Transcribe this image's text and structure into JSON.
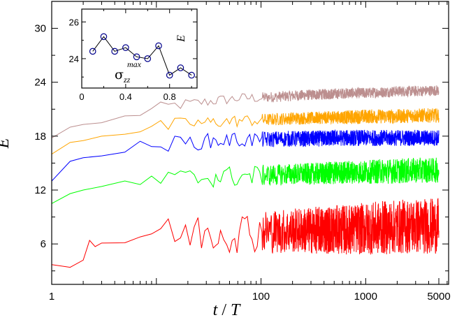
{
  "chart_data": [
    {
      "type": "line",
      "x_scale": "log",
      "xlabel_var": "t",
      "xlabel_sep": " / ",
      "xlabel_unit": "T",
      "ylabel": "E",
      "xlim": [
        1,
        6200
      ],
      "ylim": [
        1.5,
        33
      ],
      "x_ticks": [
        1,
        100,
        1000,
        5000
      ],
      "x_tick_labels": [
        "1",
        "100",
        "1000",
        "5000"
      ],
      "y_ticks": [
        6,
        12,
        18,
        24,
        30
      ],
      "y_tick_labels": [
        "6",
        "12",
        "18",
        "24",
        "30"
      ],
      "series": [
        {
          "name": "brown",
          "color": "#bc8f8f",
          "x": [
            1,
            1.5,
            2,
            3,
            4,
            5,
            6,
            8,
            10,
            13,
            16,
            20,
            30,
            40,
            60,
            100,
            150,
            200,
            300,
            500,
            700,
            1000,
            1500,
            2000,
            3000,
            5000
          ],
          "y": [
            17.8,
            19.0,
            19.3,
            19.5,
            19.8,
            20.1,
            20.2,
            20.8,
            21.0,
            21.3,
            21.5,
            21.6,
            21.8,
            22.0,
            22.2,
            22.3,
            22.4,
            22.5,
            22.6,
            22.7,
            22.8,
            22.8,
            22.9,
            23.0,
            23.0,
            23.1
          ],
          "noise": [
            0,
            0,
            0.2,
            0.4,
            0.5,
            0.5,
            0.5,
            0.6,
            0.7,
            0.7,
            0.7,
            0.6,
            0.6,
            0.6,
            0.6,
            0.6,
            0.6,
            0.6,
            0.6,
            0.6,
            0.6,
            0.6,
            0.6,
            0.6,
            0.6,
            0.6
          ]
        },
        {
          "name": "orange",
          "color": "#ffa500",
          "x": [
            1,
            1.5,
            2,
            3,
            4,
            5,
            6,
            8,
            10,
            13,
            16,
            20,
            30,
            40,
            60,
            100,
            150,
            200,
            300,
            500,
            700,
            1000,
            1500,
            2000,
            3000,
            5000
          ],
          "y": [
            16.0,
            17.3,
            17.5,
            18.0,
            18.2,
            18.6,
            18.6,
            18.8,
            19.0,
            19.1,
            19.3,
            19.4,
            19.5,
            19.6,
            19.7,
            19.8,
            19.9,
            20.0,
            20.0,
            20.1,
            20.1,
            20.2,
            20.2,
            20.2,
            20.3,
            20.3
          ],
          "noise": [
            0,
            0,
            0.3,
            0.5,
            0.7,
            0.7,
            0.8,
            0.8,
            0.8,
            0.8,
            0.8,
            0.7,
            0.7,
            0.7,
            0.7,
            0.7,
            0.7,
            0.7,
            0.7,
            0.7,
            0.8,
            0.8,
            0.8,
            0.8,
            0.8,
            0.8
          ]
        },
        {
          "name": "blue",
          "color": "#0000ff",
          "x": [
            1,
            1.5,
            2,
            3,
            4,
            5,
            6,
            8,
            10,
            13,
            16,
            20,
            30,
            40,
            60,
            100,
            150,
            200,
            300,
            500,
            700,
            1000,
            1500,
            2000,
            3000,
            5000
          ],
          "y": [
            13.0,
            15.2,
            15.6,
            15.8,
            16.1,
            16.3,
            16.5,
            16.8,
            17.0,
            17.1,
            17.2,
            17.3,
            17.4,
            17.5,
            17.6,
            17.6,
            17.7,
            17.7,
            17.7,
            17.8,
            17.8,
            17.8,
            17.8,
            17.8,
            17.8,
            17.8
          ],
          "noise": [
            0,
            0,
            0.3,
            0.6,
            0.7,
            0.8,
            0.8,
            0.9,
            0.9,
            0.9,
            0.9,
            0.9,
            0.9,
            0.9,
            0.9,
            0.9,
            0.9,
            0.9,
            0.9,
            0.9,
            0.9,
            0.9,
            0.9,
            0.9,
            0.9,
            0.9
          ]
        },
        {
          "name": "green",
          "color": "#00ff00",
          "x": [
            1,
            1.5,
            2,
            3,
            4,
            5,
            6,
            8,
            10,
            13,
            16,
            20,
            30,
            40,
            60,
            100,
            150,
            200,
            300,
            500,
            700,
            1000,
            1500,
            2000,
            3000,
            5000
          ],
          "y": [
            10.5,
            11.6,
            12.0,
            12.4,
            12.6,
            12.7,
            12.8,
            12.9,
            13.0,
            13.1,
            13.2,
            13.3,
            13.4,
            13.5,
            13.5,
            13.6,
            13.7,
            13.8,
            13.8,
            13.9,
            14.0,
            14.0,
            14.1,
            14.1,
            14.2,
            14.2
          ],
          "noise": [
            0,
            0,
            0.4,
            0.8,
            1.0,
            1.0,
            1.1,
            1.2,
            1.2,
            1.2,
            1.2,
            1.2,
            1.2,
            1.2,
            1.2,
            1.2,
            1.2,
            1.2,
            1.2,
            1.3,
            1.3,
            1.3,
            1.4,
            1.4,
            1.4,
            1.4
          ]
        },
        {
          "name": "red",
          "color": "#ff0000",
          "x": [
            1,
            1.5,
            2,
            2.3,
            2.6,
            3,
            3.5,
            4,
            5,
            6,
            8,
            10,
            13,
            16,
            20,
            30,
            40,
            60,
            100,
            150,
            200,
            300,
            500,
            700,
            1000,
            1500,
            2000,
            3000,
            5000
          ],
          "y": [
            3.7,
            3.4,
            4.2,
            6.4,
            5.7,
            6.1,
            7.0,
            6.4,
            6.6,
            6.8,
            7.1,
            7.2,
            7.0,
            7.1,
            7.2,
            7.3,
            7.3,
            7.4,
            7.4,
            7.4,
            7.5,
            7.5,
            7.6,
            7.6,
            7.7,
            7.8,
            7.9,
            8.0,
            8.0
          ],
          "noise": [
            0,
            0,
            0,
            0,
            0,
            0.4,
            0.8,
            1.2,
            1.5,
            1.6,
            1.8,
            1.9,
            2.0,
            2.1,
            2.2,
            2.3,
            2.3,
            2.4,
            2.4,
            2.5,
            2.5,
            2.6,
            2.7,
            2.8,
            2.9,
            3.0,
            3.0,
            3.1,
            3.1
          ]
        }
      ]
    },
    {
      "type": "line",
      "role": "inset",
      "xlabel_sym": "σ",
      "xlabel_sub": "zz",
      "xlabel_sup": "max",
      "ylabel": "E",
      "xlim": [
        0,
        1.05
      ],
      "ylim": [
        22.4,
        26.7
      ],
      "x_ticks": [
        0,
        0.4,
        0.8
      ],
      "x_tick_labels": [
        "0",
        "0.4",
        "0.8"
      ],
      "y_ticks": [
        24,
        26
      ],
      "y_tick_labels": [
        "24",
        "26"
      ],
      "marker": "open-circle",
      "line_color": "#000000",
      "marker_color": "#00008b",
      "x": [
        0.1,
        0.2,
        0.3,
        0.4,
        0.5,
        0.6,
        0.7,
        0.8,
        0.9,
        1.0
      ],
      "y": [
        24.4,
        25.2,
        24.4,
        24.6,
        24.1,
        24.0,
        24.7,
        23.1,
        23.5,
        23.1
      ]
    }
  ]
}
